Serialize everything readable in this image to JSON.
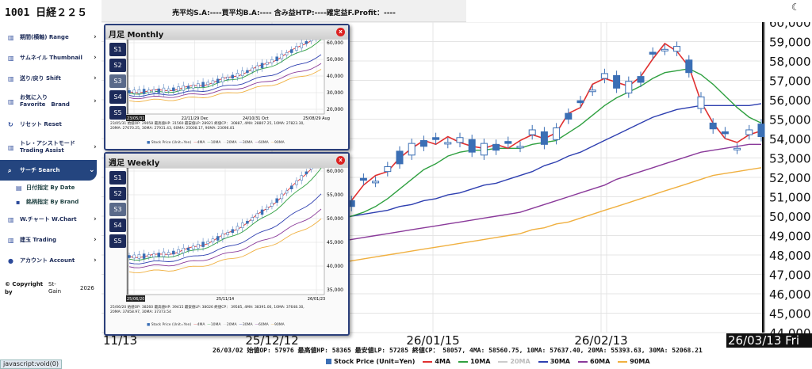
{
  "sidebar": {
    "logo": "1001 日経２２５",
    "items": [
      {
        "label": "期間(横軸) Range",
        "icon": "chart-icon"
      },
      {
        "label": "サムネイル Thumbnail",
        "icon": "chart-icon"
      },
      {
        "label": "送り/戻り Shift",
        "icon": "chart-icon"
      },
      {
        "label": "お気に入り\nFavorite　Brand",
        "icon": "chart-icon"
      },
      {
        "label": "リセット Reset",
        "icon": "refresh-icon"
      },
      {
        "label": "トレ・アシストモード\nTrading Assist",
        "icon": "chart-icon"
      },
      {
        "label": "サーチ Search",
        "icon": "search-icon"
      },
      {
        "label": "W.チャート W.Chart",
        "icon": "chart-icon"
      },
      {
        "label": "建玉 Trading",
        "icon": "chart-icon"
      },
      {
        "label": "アカウント Account",
        "icon": "user-icon"
      }
    ],
    "subitems": [
      "日付指定 By Date",
      "銘柄指定 By Brand"
    ],
    "copyright": "© Copyright\nby",
    "brand": "St-\nGain",
    "year": "2026",
    "status": "javascript:void(0)"
  },
  "topbar": {
    "text": "売平均S.A:----買平均B.A:---- 含み益HTP:----確定益F.Profit：----"
  },
  "monthly": {
    "title": "月足 Monthly",
    "buttons": [
      "S1",
      "S2",
      "S3",
      "S4",
      "S5"
    ],
    "yticks": [
      "60,000",
      "50,000",
      "40,000",
      "30,000",
      "20,000"
    ],
    "xticks": [
      "/18 Feb",
      "22/11/29 Dec",
      "24/10/31 Oct",
      "25/08/29 Aug"
    ],
    "selected": "23/05/31",
    "info": "23/05/31 始値OP: 29058 最高値HP: 31560 最安値LP: 28921 終値CP： 30887, 4MA: 28807.25, 10MA: 27823.30,\n20MA: 27670.25, 30MA: 27931.43, 60MA: 25008.17, 90MA: 23096.81",
    "legend": [
      "Stock Price (Unit=Yen)",
      "4MA",
      "10MA",
      "20MA",
      "30MA",
      "60MA",
      "90MA"
    ]
  },
  "weekly": {
    "title": "週足 Weekly",
    "buttons": [
      "S1",
      "S2",
      "S3",
      "S4",
      "S5"
    ],
    "yticks": [
      "60,000",
      "55,000",
      "50,000",
      "45,000",
      "40,000",
      "35,000"
    ],
    "xticks": [
      "25/09/05",
      "25/11/14",
      "26/01/23"
    ],
    "selected": "25/06/20",
    "info": "25/06/20 始値OP: 38260 最高値HP: 39415 最安値LP: 38026 終値CP： 39585, 4MA: 38391.00, 10MA: 37648.30,\n20MA: 37858.97, 30MA: 37373.54",
    "legend": [
      "Stock Price (Unit=Yen)",
      "4MA",
      "10MA",
      "20MA",
      "30MA",
      "60MA",
      "90MA"
    ]
  },
  "main": {
    "yticks": [
      "60,000",
      "59,000",
      "58,000",
      "57,000",
      "56,000",
      "55,000",
      "54,000",
      "53,000",
      "52,000",
      "51,000",
      "50,000",
      "49,000",
      "48,000",
      "47,000",
      "46,000",
      "45,000",
      "44,000"
    ],
    "xticks": [
      "25/12/12",
      "26/01/15",
      "26/02/13"
    ],
    "partial_xtick": "11/13",
    "selected_date": "26/03/13 Fri",
    "info": "26/03/02 始値OP: 57976 最高値HP: 58365 最安値LP: 57285 終値CP： 58057, 4MA: 58560.75, 10MA: 57637.40, 20MA: 55393.63, 30MA: 52068.21",
    "legend": [
      {
        "label": "Stock Price (Unit=Yen)",
        "color": "#3b6fb5"
      },
      {
        "label": "4MA",
        "color": "#e03030"
      },
      {
        "label": "10MA",
        "color": "#2fa040"
      },
      {
        "label": "20MA",
        "color": "#c8c8c8"
      },
      {
        "label": "30MA",
        "color": "#2e3fb0"
      },
      {
        "label": "60MA",
        "color": "#8a3a9a"
      },
      {
        "label": "90MA",
        "color": "#f0b040"
      }
    ]
  },
  "chart_data": {
    "type": "candlestick",
    "ylim": [
      44000,
      60000
    ],
    "ma4": [
      50100,
      50800,
      51600,
      52100,
      52300,
      53000,
      53500,
      53900,
      53700,
      54100,
      53800,
      53600,
      53500,
      53700,
      53500,
      53900,
      54200,
      54000,
      54300,
      55300,
      55600,
      56800,
      57100,
      56900,
      56700,
      57200,
      58100,
      58900,
      58500,
      57700,
      55900,
      54800,
      54000,
      53800,
      54200,
      54400
    ],
    "ma10": [
      49800,
      50000,
      50200,
      50500,
      50900,
      51400,
      51900,
      52400,
      52700,
      53100,
      53300,
      53400,
      53400,
      53500,
      53500,
      53500,
      53700,
      53800,
      53900,
      54300,
      54700,
      55200,
      55700,
      56100,
      56400,
      56700,
      57100,
      57400,
      57500,
      57600,
      57300,
      56800,
      56200,
      55600,
      55100,
      54800
    ],
    "ma30": [
      49900,
      50000,
      50100,
      50200,
      50300,
      50500,
      50600,
      50800,
      50900,
      51100,
      51200,
      51400,
      51600,
      51700,
      51900,
      52100,
      52300,
      52600,
      52800,
      53100,
      53300,
      53600,
      53900,
      54200,
      54500,
      54800,
      55100,
      55300,
      55500,
      55600,
      55700,
      55700,
      55700,
      55700,
      55700,
      55800
    ],
    "ma60": [
      48700,
      48800,
      48900,
      49000,
      49100,
      49200,
      49300,
      49400,
      49500,
      49600,
      49700,
      49800,
      49900,
      50000,
      50100,
      50200,
      50400,
      50600,
      50800,
      51000,
      51200,
      51400,
      51600,
      51900,
      52100,
      52300,
      52500,
      52700,
      52900,
      53100,
      53300,
      53400,
      53500,
      53600,
      53700,
      53700
    ],
    "ma90": [
      47600,
      47700,
      47800,
      47900,
      48000,
      48100,
      48200,
      48300,
      48400,
      48500,
      48600,
      48700,
      48800,
      48900,
      49000,
      49100,
      49300,
      49400,
      49600,
      49700,
      49900,
      50100,
      50300,
      50500,
      50700,
      50900,
      51100,
      51300,
      51500,
      51700,
      51900,
      52100,
      52200,
      52300,
      52400,
      52500
    ]
  }
}
